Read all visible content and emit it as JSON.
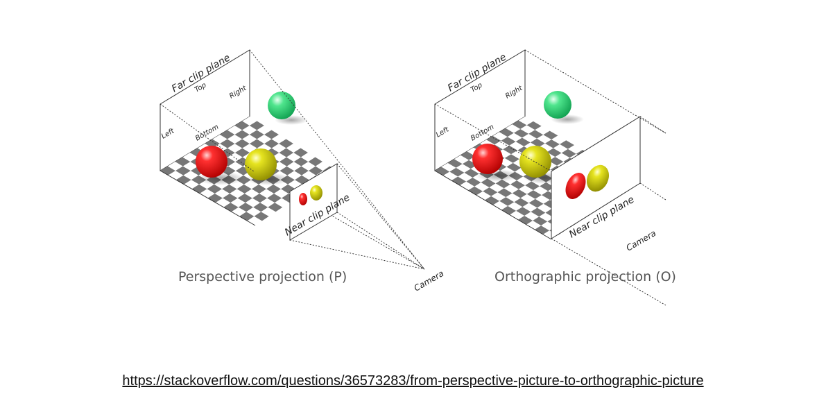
{
  "perspective": {
    "caption": "Perspective projection (P)",
    "far_plane_label": "Far clip plane",
    "near_plane_label": "Near clip plane",
    "top_label": "Top",
    "right_label": "Right",
    "left_label": "Left",
    "bottom_label": "Bottom",
    "camera_label": "Camera"
  },
  "orthographic": {
    "caption": "Orthographic projection (O)",
    "far_plane_label": "Far clip plane",
    "near_plane_label": "Near clip plane",
    "top_label": "Top",
    "right_label": "Right",
    "left_label": "Left",
    "bottom_label": "Bottom",
    "camera_label": "Camera"
  },
  "source_url": "https://stackoverflow.com/questions/36573283/from-perspective-picture-to-orthographic-picture",
  "colors": {
    "red_sphere": "#e8141a",
    "yellow_sphere": "#d8d61c",
    "green_sphere": "#3ddc7e",
    "checker_dark": "#777777",
    "checker_light": "#ffffff"
  }
}
